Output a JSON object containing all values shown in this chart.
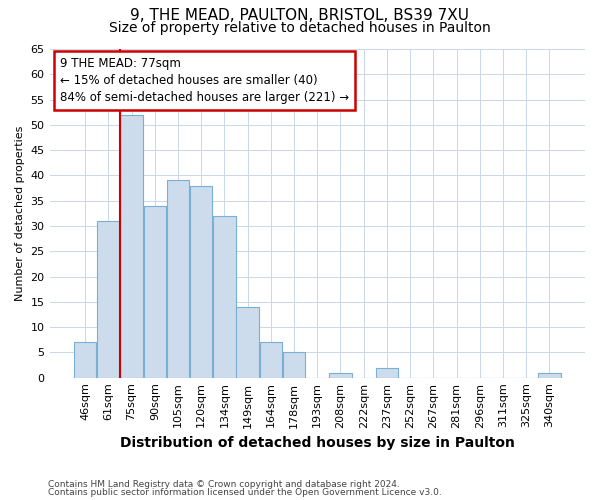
{
  "title_line1": "9, THE MEAD, PAULTON, BRISTOL, BS39 7XU",
  "title_line2": "Size of property relative to detached houses in Paulton",
  "xlabel": "Distribution of detached houses by size in Paulton",
  "ylabel": "Number of detached properties",
  "categories": [
    "46sqm",
    "61sqm",
    "75sqm",
    "90sqm",
    "105sqm",
    "120sqm",
    "134sqm",
    "149sqm",
    "164sqm",
    "178sqm",
    "193sqm",
    "208sqm",
    "222sqm",
    "237sqm",
    "252sqm",
    "267sqm",
    "281sqm",
    "296sqm",
    "311sqm",
    "325sqm",
    "340sqm"
  ],
  "values": [
    7,
    31,
    52,
    34,
    39,
    38,
    32,
    14,
    7,
    5,
    0,
    1,
    0,
    2,
    0,
    0,
    0,
    0,
    0,
    0,
    1
  ],
  "bar_color": "#cddcec",
  "bar_edge_color": "#7aafd4",
  "red_line_index": 2,
  "ylim": [
    0,
    65
  ],
  "yticks": [
    0,
    5,
    10,
    15,
    20,
    25,
    30,
    35,
    40,
    45,
    50,
    55,
    60,
    65
  ],
  "annotation_text": "9 THE MEAD: 77sqm\n← 15% of detached houses are smaller (40)\n84% of semi-detached houses are larger (221) →",
  "annotation_box_color": "#ffffff",
  "annotation_box_edge": "#cc0000",
  "footnote1": "Contains HM Land Registry data © Crown copyright and database right 2024.",
  "footnote2": "Contains public sector information licensed under the Open Government Licence v3.0.",
  "grid_color": "#c8d8ea",
  "background_color": "#ffffff",
  "title_fontsize": 11,
  "subtitle_fontsize": 10,
  "xlabel_fontsize": 10,
  "ylabel_fontsize": 8,
  "tick_fontsize": 8,
  "annot_fontsize": 8.5
}
